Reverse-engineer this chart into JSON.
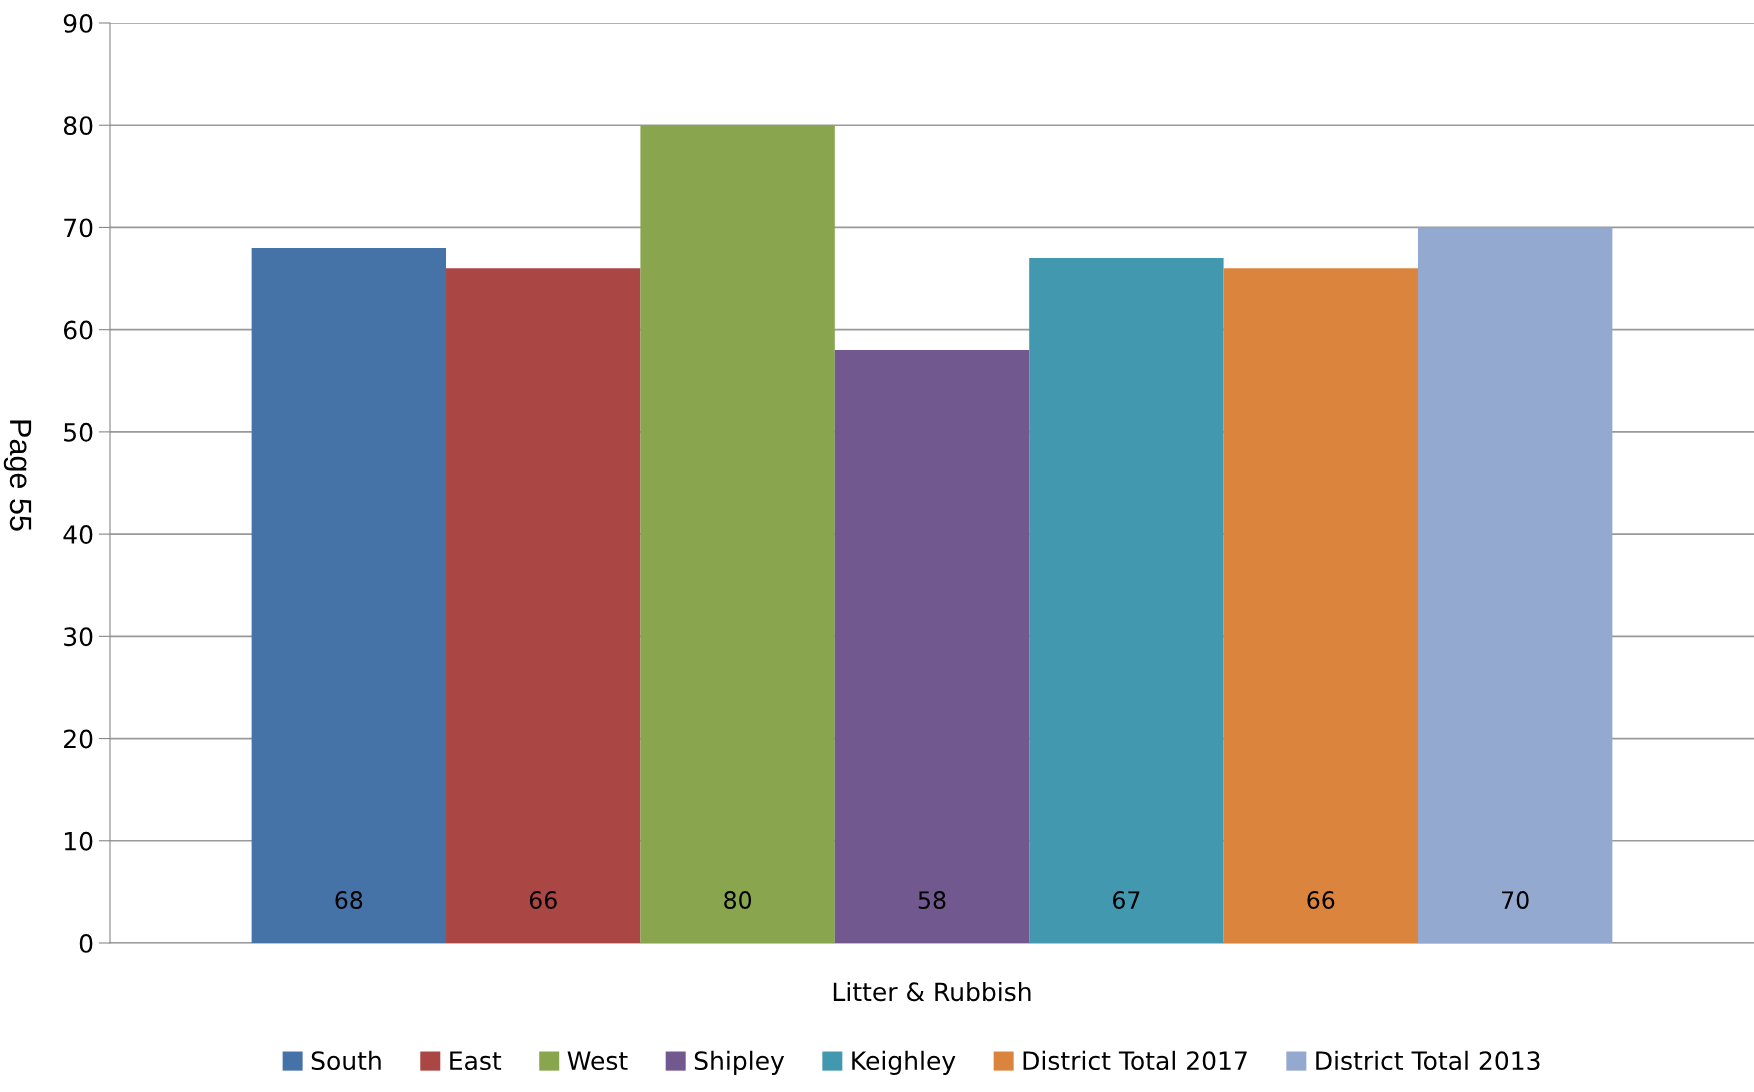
{
  "chart_data": {
    "type": "bar",
    "categories": [
      "Litter & Rubbish"
    ],
    "series": [
      {
        "name": "South",
        "color": "#4572a7",
        "values": [
          68
        ]
      },
      {
        "name": "East",
        "color": "#aa4643",
        "values": [
          66
        ]
      },
      {
        "name": "West",
        "color": "#89a54e",
        "values": [
          80
        ]
      },
      {
        "name": "Shipley",
        "color": "#71588f",
        "values": [
          58
        ]
      },
      {
        "name": "Keighley",
        "color": "#4198af",
        "values": [
          67
        ]
      },
      {
        "name": "District Total 2017",
        "color": "#db843d",
        "values": [
          66
        ]
      },
      {
        "name": "District Total 2013",
        "color": "#93a9cf",
        "values": [
          70
        ]
      }
    ],
    "ylim": [
      0,
      90
    ],
    "yticks": [
      0,
      10,
      20,
      30,
      40,
      50,
      60,
      70,
      80,
      90
    ],
    "grid": "y",
    "legend": "bottom",
    "data_labels": true,
    "annotations": [
      "Page 55"
    ]
  }
}
